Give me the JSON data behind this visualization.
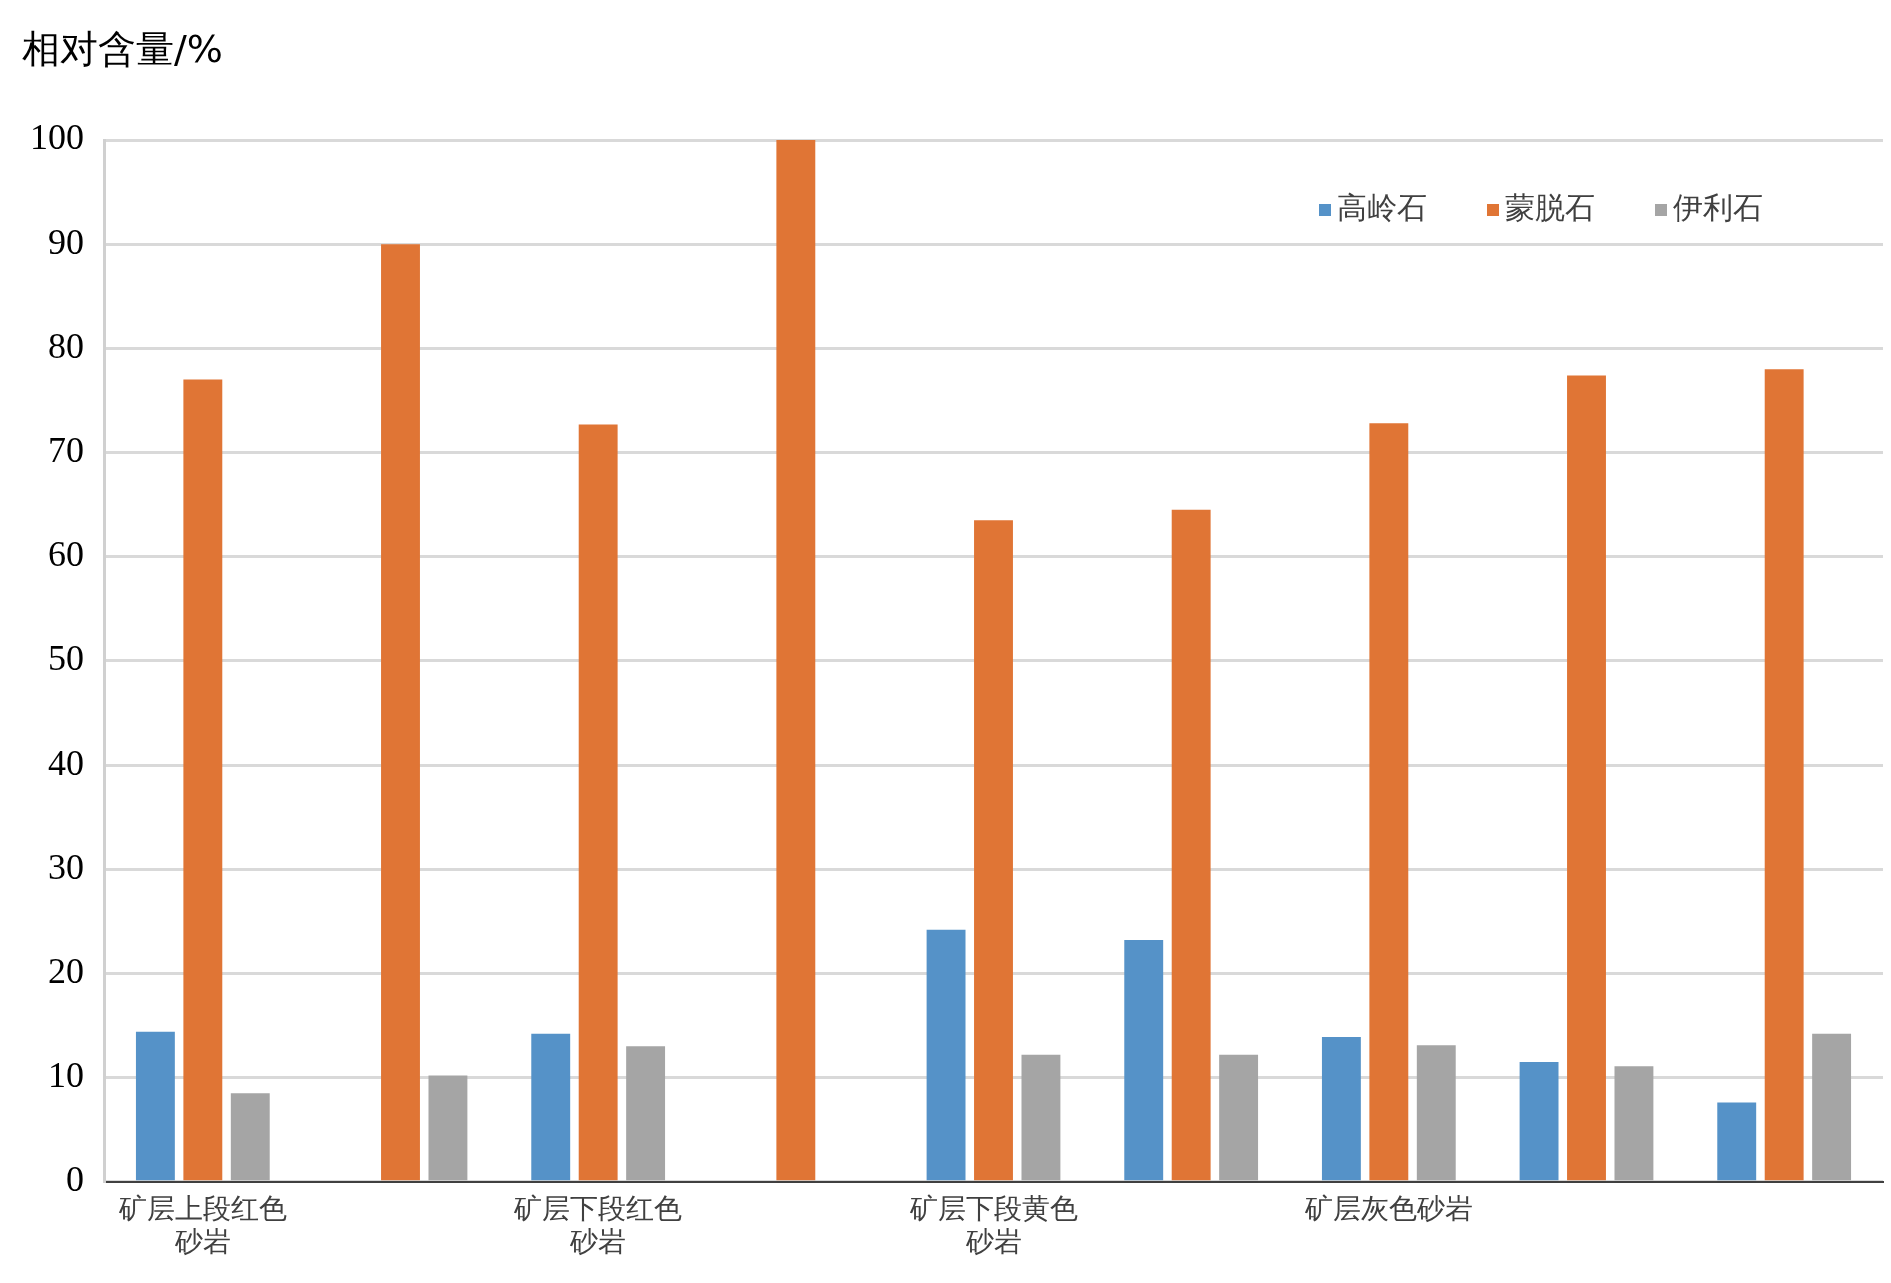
{
  "chart_data": {
    "type": "bar",
    "ylabel": "相对含量/%",
    "categories": [
      "矿层上段红色砂岩",
      null,
      "矿层下段红色砂岩",
      null,
      "矿层下段黄色砂岩",
      null,
      "矿层灰色砂岩",
      null,
      null
    ],
    "series": [
      {
        "name": "高岭石",
        "color": "#5592c8",
        "values": [
          14.4,
          0,
          14.2,
          0,
          24.2,
          23.2,
          13.9,
          11.5,
          7.6
        ]
      },
      {
        "name": "蒙脱石",
        "color": "#e07535",
        "values": [
          77.0,
          90.0,
          72.7,
          100,
          63.5,
          64.5,
          72.8,
          77.4,
          78.0
        ]
      },
      {
        "name": "伊利石",
        "color": "#a5a5a5",
        "values": [
          8.5,
          10.2,
          13.0,
          0,
          12.2,
          12.2,
          13.1,
          11.1,
          14.2
        ]
      }
    ],
    "ylim": [
      0,
      100
    ],
    "yticks": [
      0,
      10,
      20,
      30,
      40,
      50,
      60,
      70,
      80,
      90,
      100
    ],
    "grid": "y",
    "legend": "top right"
  }
}
